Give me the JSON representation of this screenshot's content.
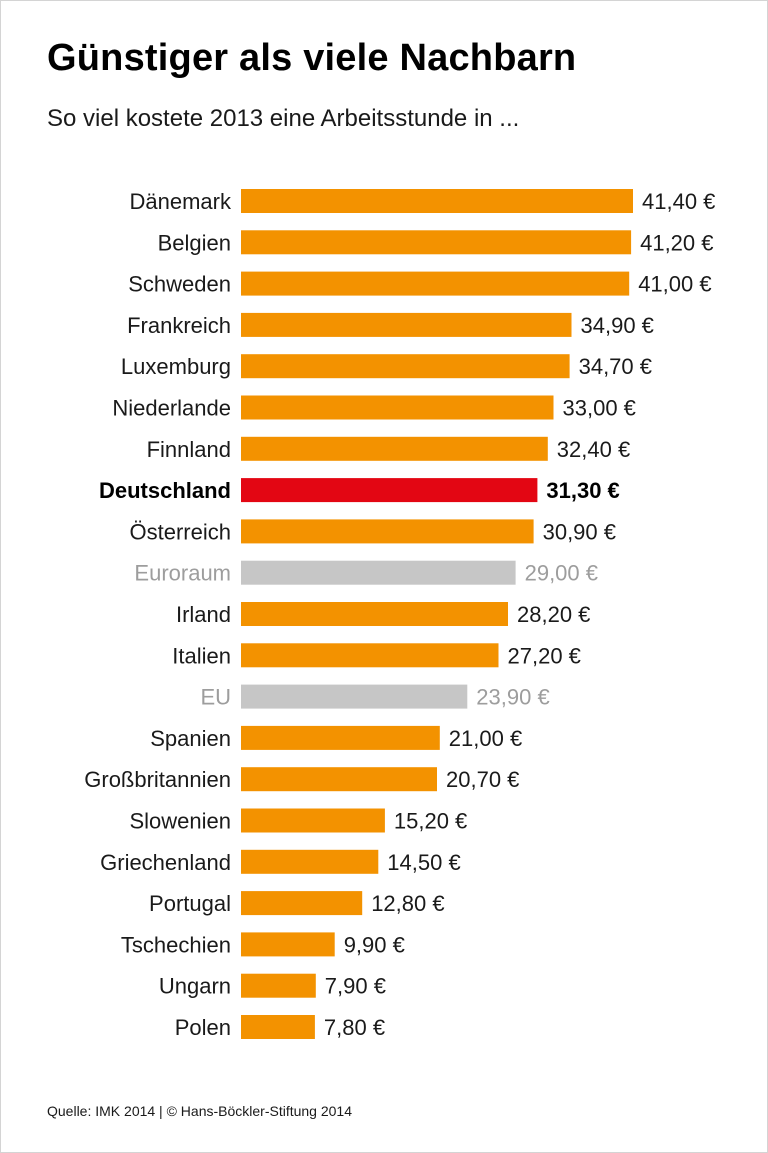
{
  "header": {
    "title": "Günstiger als viele Nachbarn",
    "subtitle": "So viel kostete 2013 eine Arbeitsstunde in ..."
  },
  "footer": {
    "source": "Quelle: IMK 2014 | © Hans-Böckler-Stiftung 2014"
  },
  "colors": {
    "default": "#f39200",
    "highlight": "#e30613",
    "aggregate": "#c6c6c6",
    "aggregate_text": "#9d9d9d",
    "text": "#1a1a1a"
  },
  "chart_data": {
    "type": "bar",
    "orientation": "horizontal",
    "title": "Günstiger als viele Nachbarn",
    "subtitle": "So viel kostete 2013 eine Arbeitsstunde in ...",
    "unit": "€",
    "xlim": [
      0,
      41.4
    ],
    "grid": false,
    "categories": [
      "Dänemark",
      "Belgien",
      "Schweden",
      "Frankreich",
      "Luxemburg",
      "Niederlande",
      "Finnland",
      "Deutschland",
      "Österreich",
      "Euroraum",
      "Irland",
      "Italien",
      "EU",
      "Spanien",
      "Großbritannien",
      "Slowenien",
      "Griechenland",
      "Portugal",
      "Tschechien",
      "Ungarn",
      "Polen"
    ],
    "values": [
      41.4,
      41.2,
      41.0,
      34.9,
      34.7,
      33.0,
      32.4,
      31.3,
      30.9,
      29.0,
      28.2,
      27.2,
      23.9,
      21.0,
      20.7,
      15.2,
      14.5,
      12.8,
      9.9,
      7.9,
      7.8
    ],
    "value_labels": [
      "41,40 €",
      "41,20 €",
      "41,00 €",
      "34,90 €",
      "34,70 €",
      "33,00 €",
      "32,40 €",
      "31,30 €",
      "30,90 €",
      "29,00 €",
      "28,20 €",
      "27,20 €",
      "23,90 €",
      "21,00 €",
      "20,70 €",
      "15,20 €",
      "14,50 €",
      "12,80 €",
      "9,90 €",
      "7,90 €",
      "7,80 €"
    ],
    "bar_styles": [
      "default",
      "default",
      "default",
      "default",
      "default",
      "default",
      "default",
      "highlight",
      "default",
      "aggregate",
      "default",
      "default",
      "aggregate",
      "default",
      "default",
      "default",
      "default",
      "default",
      "default",
      "default",
      "default"
    ]
  }
}
